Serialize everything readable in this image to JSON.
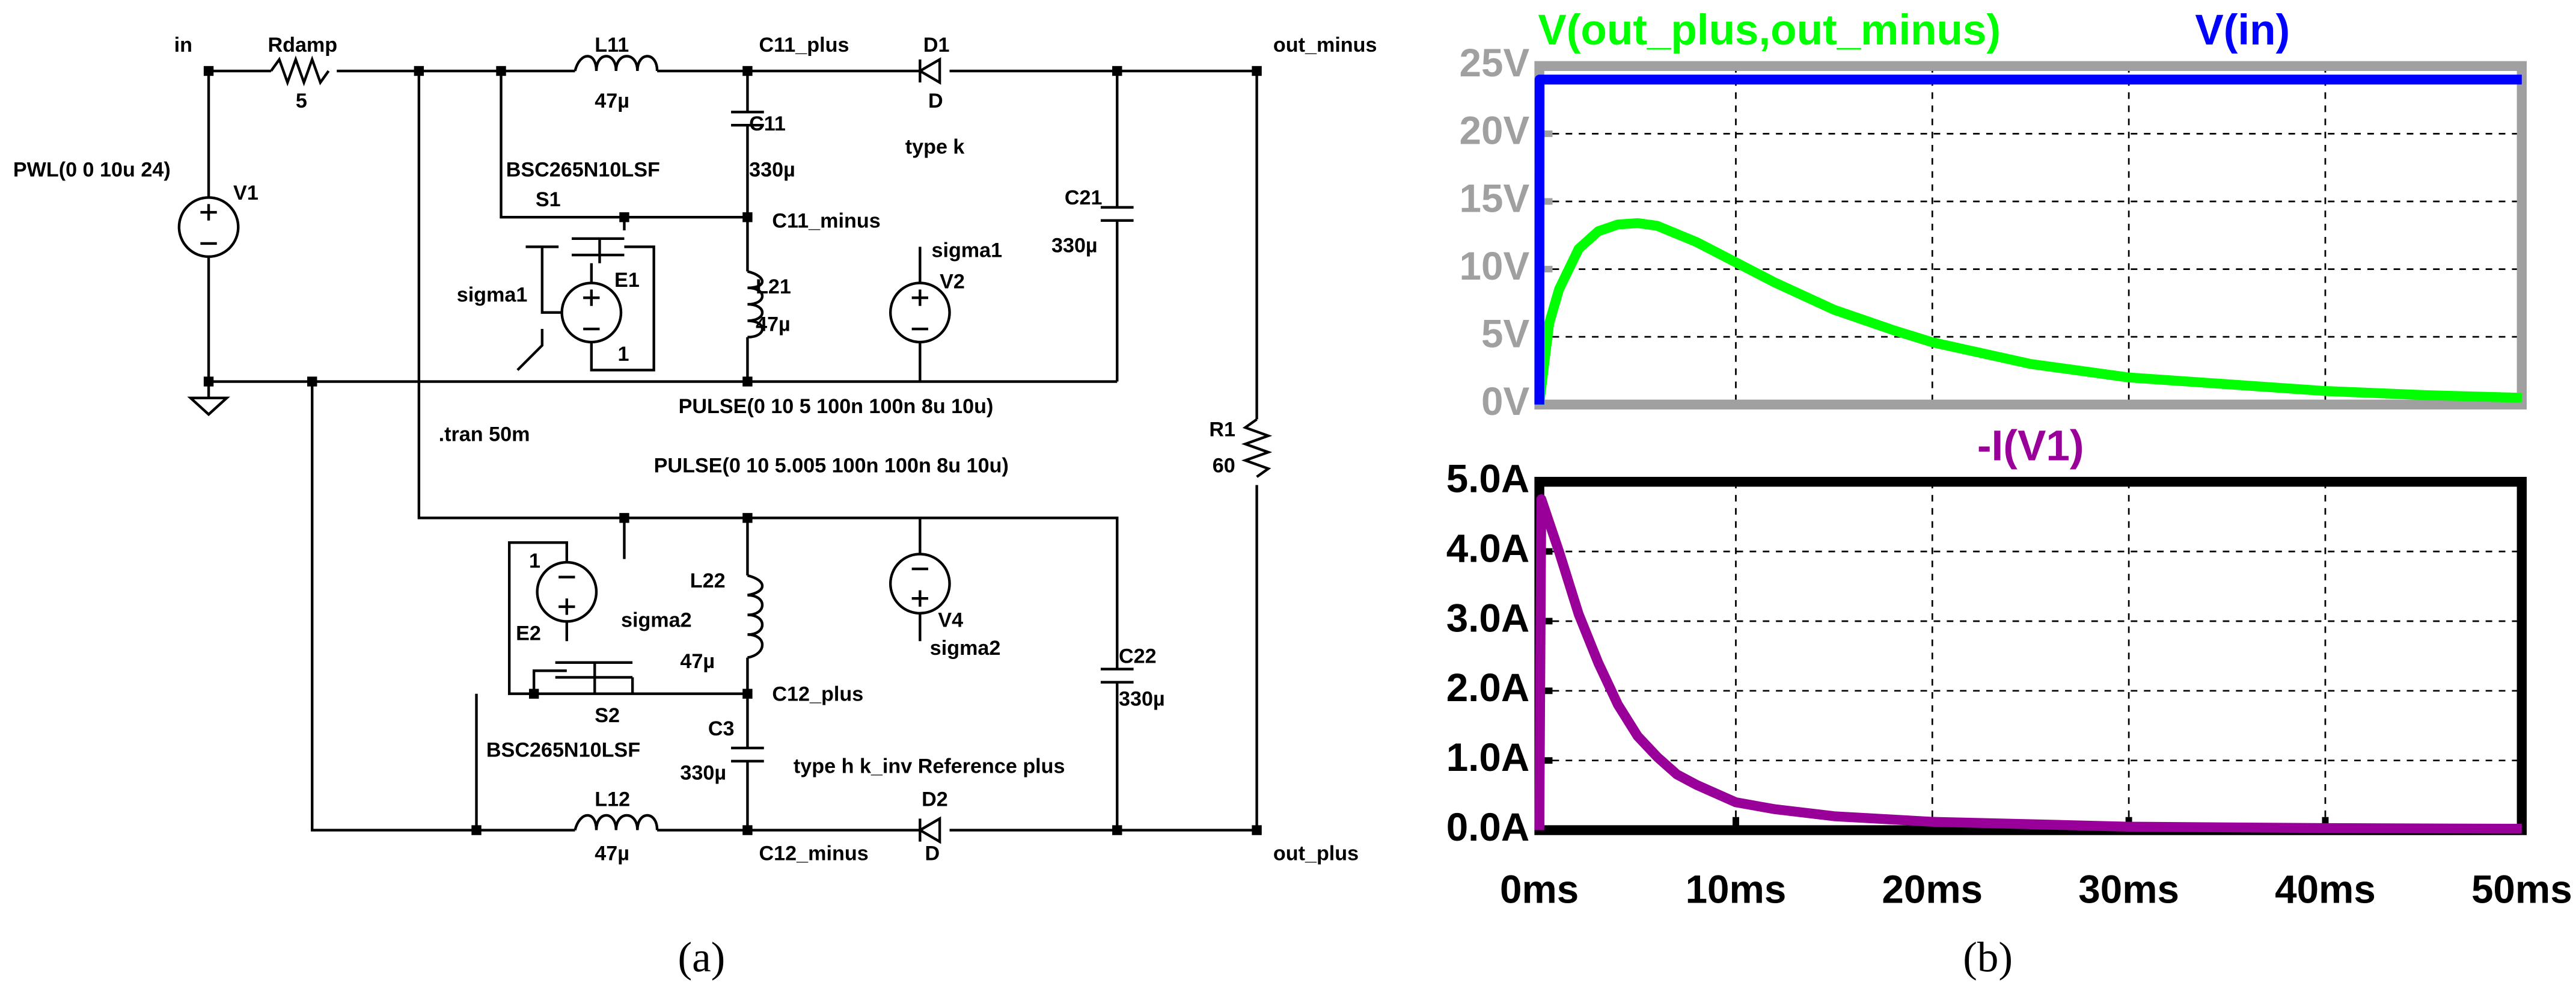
{
  "schematic": {
    "labels": [
      "in",
      "Rdamp",
      "5",
      "L11",
      "47µ",
      "C11_plus",
      "D1",
      "D",
      "out_minus",
      "PWL(0 0 10u 24)",
      "V1",
      "C11",
      "330µ",
      "type k",
      "BSC265N10LSF",
      "S1",
      "C11_minus",
      "C21",
      "330µ",
      "sigma1",
      "E1",
      "sigma1",
      "L21",
      "47µ",
      "V2",
      "1",
      "PULSE(0 10 5 100n 100n 8u 10u)",
      ".tran 50m",
      "R1",
      "60",
      "PULSE(0 10 5.005 100n 100n 8u 10u)",
      "1",
      "L22",
      "47µ",
      "sigma2",
      "E2",
      "V4",
      "sigma2",
      "C22",
      "330µ",
      "C12_plus",
      "S2",
      "C3",
      "330µ",
      "BSC265N10LSF",
      "type h k_inv Reference plus",
      "D2",
      "D",
      "L12",
      "47µ",
      "C12_minus",
      "out_plus"
    ]
  },
  "captions": [
    "(a)",
    "(b)"
  ],
  "chart_data": [
    {
      "type": "line",
      "axis_color": "#a0a0a0",
      "grid": true,
      "x": [
        0,
        0.01,
        0.5,
        1,
        2,
        3,
        4,
        5,
        6,
        8,
        10,
        12,
        15,
        18,
        20,
        25,
        30,
        35,
        40,
        45,
        50
      ],
      "series": [
        {
          "name": "V(out_plus,out_minus)",
          "color": "#00ff00",
          "values": [
            0,
            0.2,
            6,
            8.5,
            11.5,
            12.8,
            13.3,
            13.4,
            13.2,
            12,
            10.5,
            9,
            7,
            5.5,
            4.6,
            3,
            2,
            1.5,
            1,
            0.7,
            0.5
          ]
        },
        {
          "name": "V(in)",
          "color": "#0000ff",
          "values": [
            0,
            24,
            24,
            24,
            24,
            24,
            24,
            24,
            24,
            24,
            24,
            24,
            24,
            24,
            24,
            24,
            24,
            24,
            24,
            24,
            24
          ]
        }
      ],
      "xlim": [
        0,
        50
      ],
      "ylim": [
        0,
        25
      ],
      "yticks": [
        {
          "value": 0,
          "label": "0V"
        },
        {
          "value": 5,
          "label": "5V"
        },
        {
          "value": 10,
          "label": "10V"
        },
        {
          "value": 15,
          "label": "15V"
        },
        {
          "value": 20,
          "label": "20V"
        },
        {
          "value": 25,
          "label": "25V"
        }
      ]
    },
    {
      "type": "line",
      "axis_color": "#000000",
      "grid": true,
      "x": [
        0,
        0.1,
        1,
        2,
        3,
        4,
        5,
        6,
        7,
        8,
        10,
        12,
        15,
        20,
        30,
        40,
        50
      ],
      "series": [
        {
          "name": "-I(V1)",
          "color": "#990099",
          "values": [
            0,
            4.75,
            4.0,
            3.1,
            2.4,
            1.8,
            1.35,
            1.05,
            0.8,
            0.65,
            0.4,
            0.3,
            0.2,
            0.12,
            0.05,
            0.03,
            0.02
          ]
        }
      ],
      "xlim": [
        0,
        50
      ],
      "ylim": [
        0,
        5
      ],
      "xticks": [
        {
          "value": 0,
          "label": "0ms"
        },
        {
          "value": 10,
          "label": "10ms"
        },
        {
          "value": 20,
          "label": "20ms"
        },
        {
          "value": 30,
          "label": "30ms"
        },
        {
          "value": 40,
          "label": "40ms"
        },
        {
          "value": 50,
          "label": "50ms"
        }
      ],
      "yticks": [
        {
          "value": 0,
          "label": "0.0A"
        },
        {
          "value": 1,
          "label": "1.0A"
        },
        {
          "value": 2,
          "label": "2.0A"
        },
        {
          "value": 3,
          "label": "3.0A"
        },
        {
          "value": 4,
          "label": "4.0A"
        },
        {
          "value": 5,
          "label": "5.0A"
        }
      ]
    }
  ]
}
